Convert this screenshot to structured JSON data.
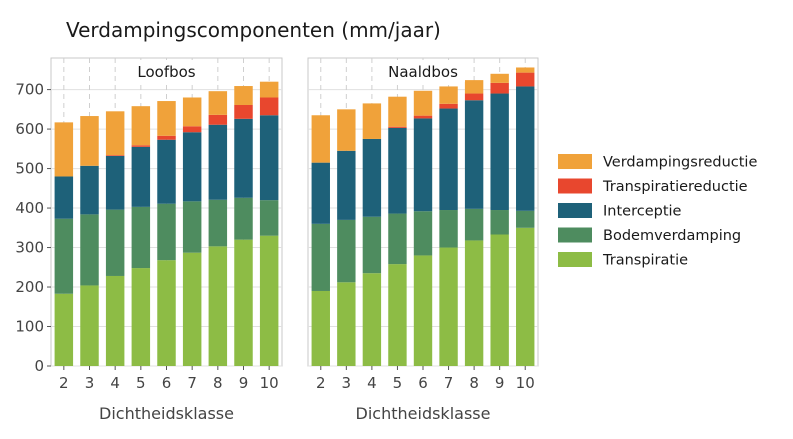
{
  "chart_data": {
    "type": "bar",
    "stacked": true,
    "title": "Verdampingscomponenten (mm/jaar)",
    "xlabel": "Dichtheidsklasse",
    "ylim": [
      0,
      780
    ],
    "yticks": [
      0,
      100,
      200,
      300,
      400,
      500,
      600,
      700
    ],
    "categories": [
      "2",
      "3",
      "4",
      "5",
      "6",
      "7",
      "8",
      "9",
      "10"
    ],
    "grid": true,
    "legend_position": "right",
    "legend": [
      {
        "name": "Verdampingsreductie",
        "color": "#F0A23A"
      },
      {
        "name": "Transpiratiereductie",
        "color": "#E8472E"
      },
      {
        "name": "Interceptie",
        "color": "#1E6179"
      },
      {
        "name": "Bodemverdamping",
        "color": "#4E8C5F"
      },
      {
        "name": "Transpiratie",
        "color": "#8DBC45"
      }
    ],
    "panels": [
      {
        "label": "Loofbos",
        "series": [
          {
            "name": "Transpiratie",
            "values": [
              183,
              204,
              228,
              248,
              268,
              287,
              303,
              320,
              330
            ]
          },
          {
            "name": "Bodemverdamping",
            "values": [
              190,
              180,
              168,
              155,
              143,
              130,
              118,
              106,
              90
            ]
          },
          {
            "name": "Interceptie",
            "values": [
              107,
              123,
              136,
              152,
              162,
              175,
              190,
              200,
              215
            ]
          },
          {
            "name": "Transpiratiereductie",
            "values": [
              0,
              0,
              2,
              4,
              10,
              15,
              25,
              35,
              45
            ]
          },
          {
            "name": "Verdampingsreductie",
            "values": [
              137,
              126,
              111,
              99,
              88,
              73,
              60,
              48,
              40
            ]
          }
        ]
      },
      {
        "label": "Naaldbos",
        "series": [
          {
            "name": "Transpiratie",
            "values": [
              190,
              212,
              235,
              258,
              280,
              300,
              318,
              333,
              350
            ]
          },
          {
            "name": "Bodemverdamping",
            "values": [
              170,
              158,
              143,
              128,
              112,
              95,
              80,
              62,
              43
            ]
          },
          {
            "name": "Interceptie",
            "values": [
              155,
              175,
              197,
              217,
              235,
              257,
              275,
              295,
              315
            ]
          },
          {
            "name": "Transpiratiereductie",
            "values": [
              0,
              0,
              0,
              3,
              7,
              12,
              17,
              27,
              35
            ]
          },
          {
            "name": "Verdampingsreductie",
            "values": [
              120,
              105,
              90,
              76,
              63,
              44,
              34,
              23,
              13
            ]
          }
        ]
      }
    ]
  }
}
